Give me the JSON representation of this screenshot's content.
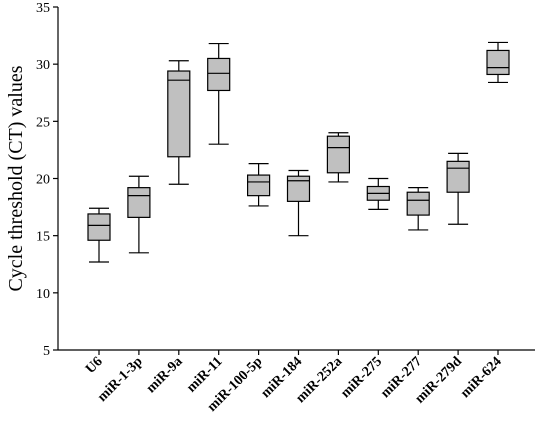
{
  "chart_data": {
    "type": "box",
    "title": "",
    "xlabel": "",
    "ylabel": "Cycle threshold (CT) values",
    "ylim": [
      5,
      35
    ],
    "yticks": [
      5,
      10,
      15,
      20,
      25,
      30,
      35
    ],
    "grid": false,
    "box_color": "#c0c0c0",
    "categories": [
      "U6",
      "miR-1-3p",
      "miR-9a",
      "miR-11",
      "miR-100-5p",
      "miR-184",
      "miR-252a",
      "miR-275",
      "miR-277",
      "miR-279d",
      "miR-624"
    ],
    "boxes": [
      {
        "min": 12.7,
        "q1": 14.6,
        "median": 15.9,
        "q3": 16.9,
        "max": 17.4
      },
      {
        "min": 13.5,
        "q1": 16.6,
        "median": 18.5,
        "q3": 19.2,
        "max": 20.2
      },
      {
        "min": 19.5,
        "q1": 21.9,
        "median": 28.6,
        "q3": 29.4,
        "max": 30.3
      },
      {
        "min": 23.0,
        "q1": 27.7,
        "median": 29.2,
        "q3": 30.5,
        "max": 31.8
      },
      {
        "min": 17.6,
        "q1": 18.5,
        "median": 19.7,
        "q3": 20.3,
        "max": 21.3
      },
      {
        "min": 15.0,
        "q1": 18.0,
        "median": 19.8,
        "q3": 20.2,
        "max": 20.7
      },
      {
        "min": 19.7,
        "q1": 20.5,
        "median": 22.7,
        "q3": 23.7,
        "max": 24.0
      },
      {
        "min": 17.3,
        "q1": 18.1,
        "median": 18.7,
        "q3": 19.3,
        "max": 20.0
      },
      {
        "min": 15.5,
        "q1": 16.8,
        "median": 18.1,
        "q3": 18.8,
        "max": 19.2
      },
      {
        "min": 16.0,
        "q1": 18.8,
        "median": 20.9,
        "q3": 21.5,
        "max": 22.2
      },
      {
        "min": 28.4,
        "q1": 29.1,
        "median": 29.7,
        "q3": 31.2,
        "max": 31.9
      }
    ]
  }
}
